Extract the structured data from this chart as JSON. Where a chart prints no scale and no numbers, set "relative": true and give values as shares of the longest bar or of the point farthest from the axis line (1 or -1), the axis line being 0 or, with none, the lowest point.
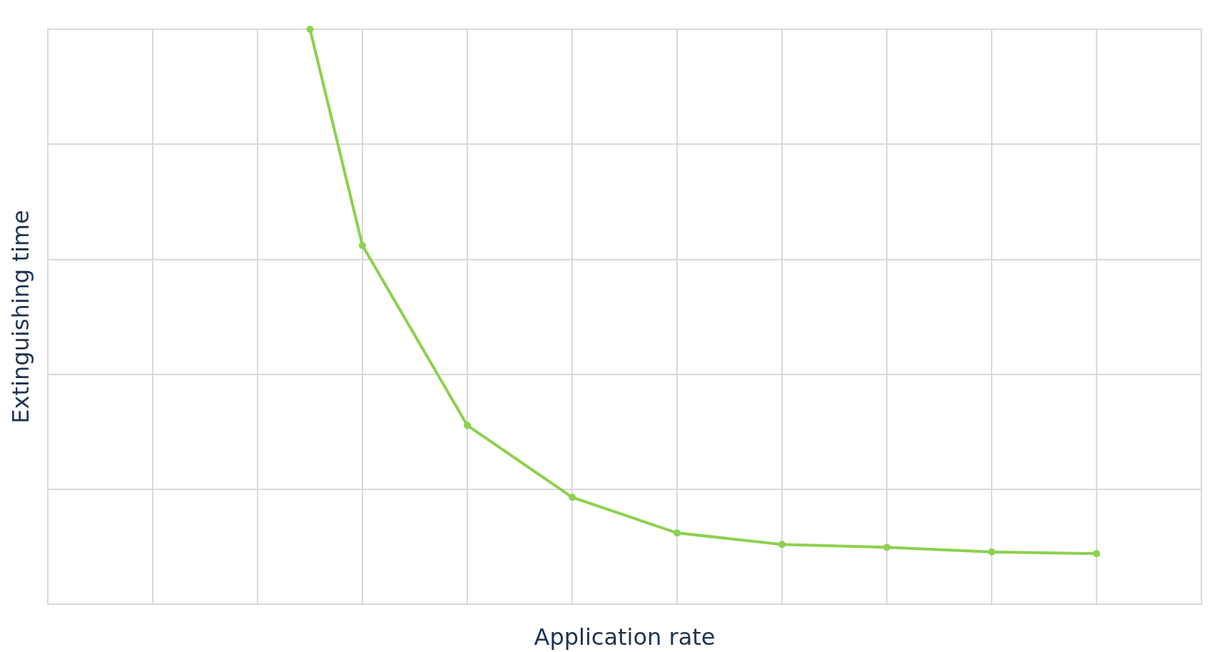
{
  "chart_data": {
    "type": "line",
    "relative": true,
    "xlabel": "Application rate",
    "ylabel": "Extinguishing time",
    "categories": [
      null,
      null,
      null,
      null,
      null,
      null,
      null,
      null,
      null,
      null,
      null,
      null,
      null,
      null,
      null,
      null,
      null,
      null,
      null,
      null,
      null,
      null,
      null
    ],
    "values": [
      null,
      null,
      null,
      null,
      null,
      1,
      0.624,
      null,
      0.311,
      null,
      0.186,
      null,
      0.124,
      null,
      0.104,
      null,
      0.099,
      null,
      0.091,
      null,
      0.088,
      null,
      null
    ],
    "color": "#8cd14e",
    "marker": "circle",
    "line_style": "solid",
    "grid": true
  }
}
